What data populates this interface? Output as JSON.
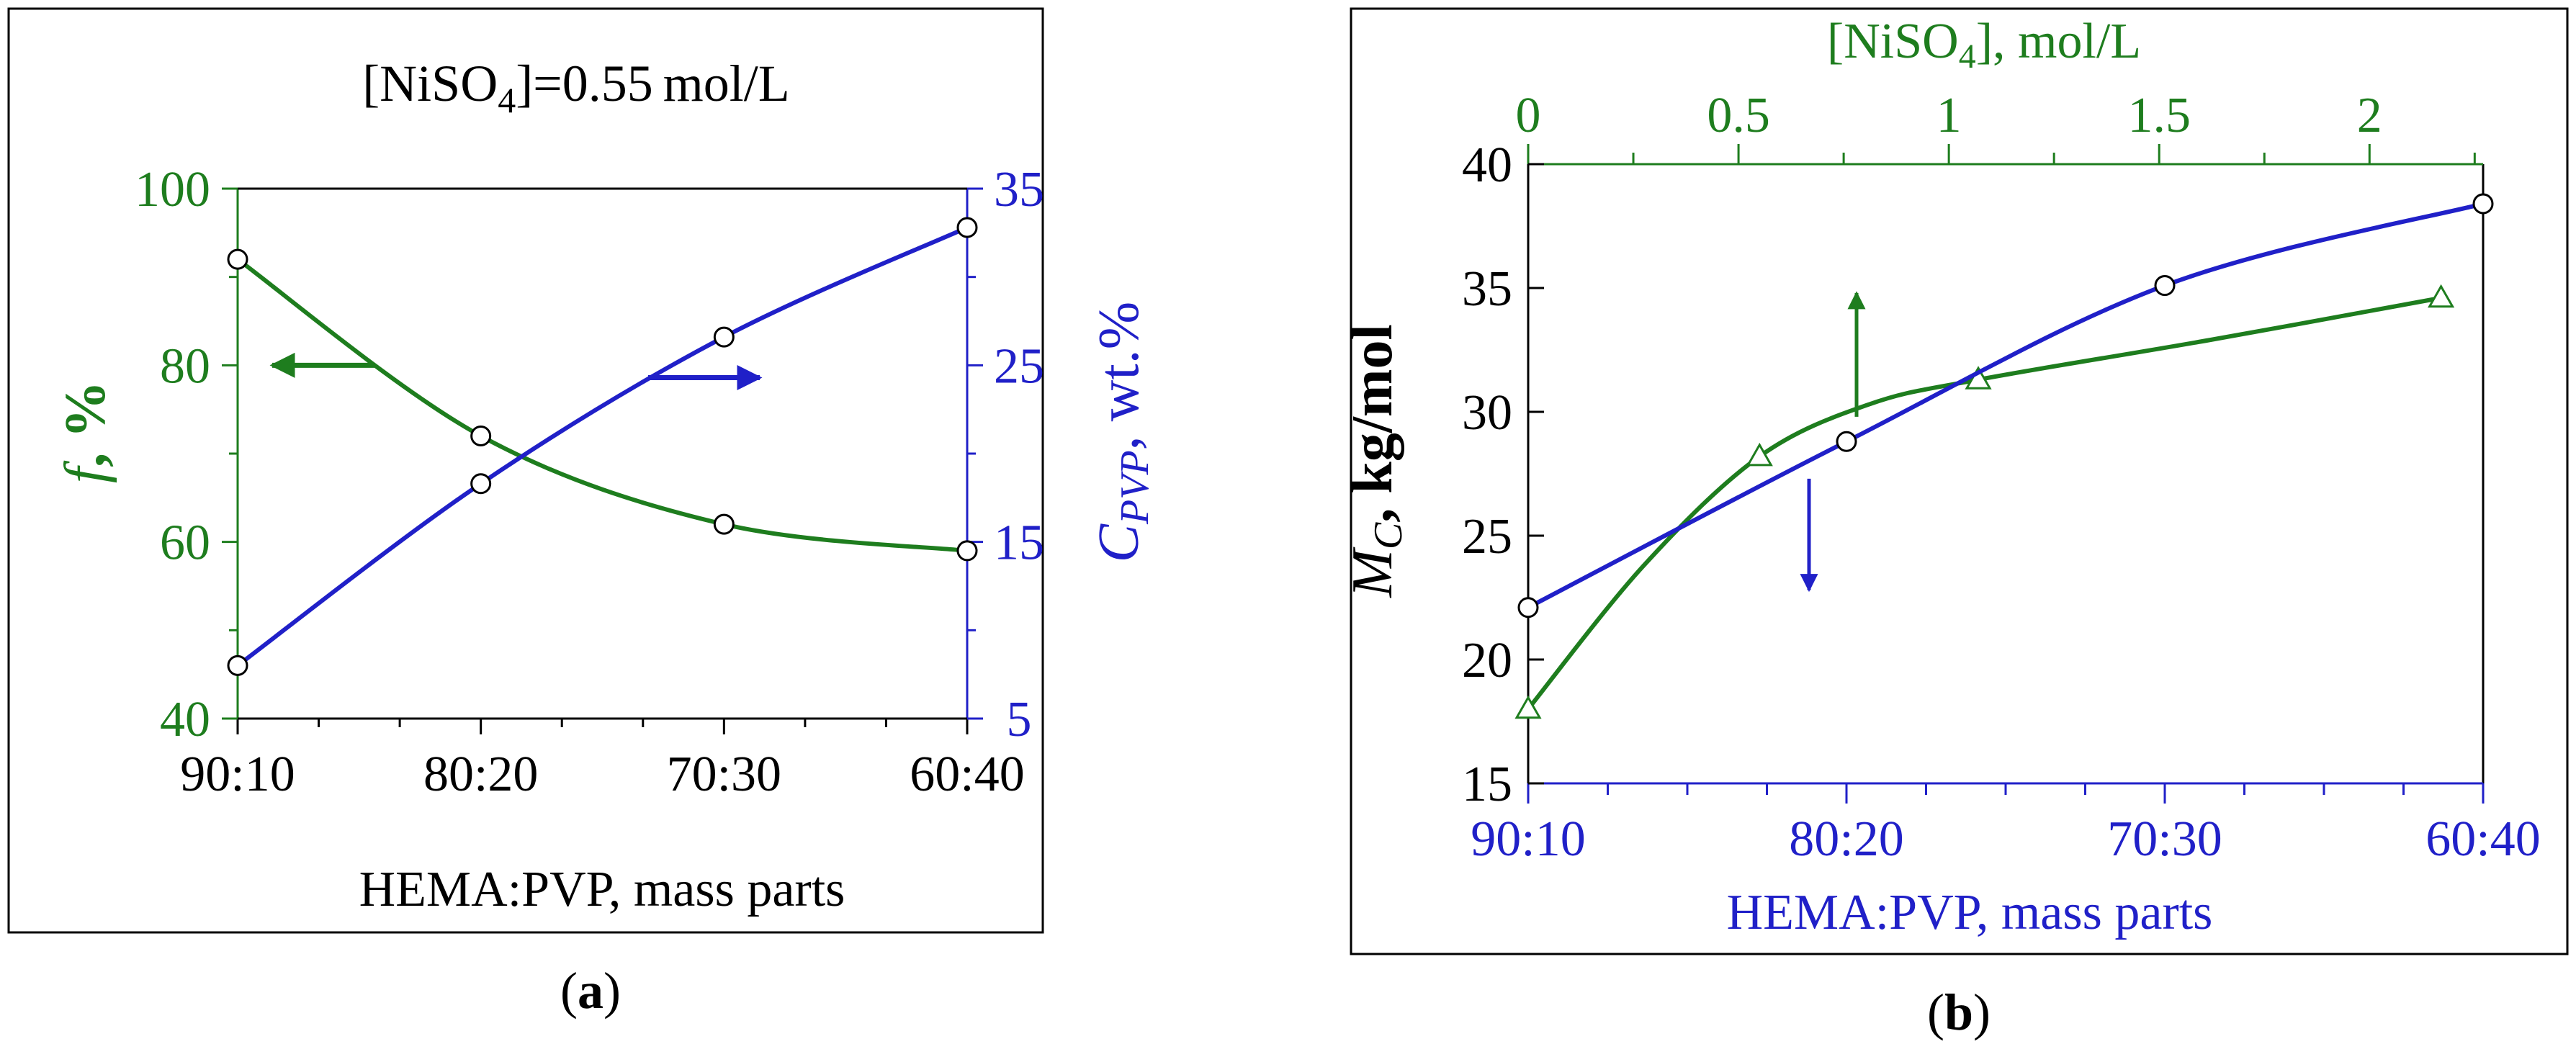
{
  "colors": {
    "green": "#1e7d1e",
    "blue": "#2020c8",
    "frame": "#000000"
  },
  "chart_data": [
    {
      "type": "line",
      "panel_label": "a",
      "title_parts": [
        "[NiSO",
        "4",
        "]=0.55",
        "mol/L"
      ],
      "categories": [
        "90:10",
        "80:20",
        "70:30",
        "60:40"
      ],
      "x": [
        10,
        20,
        30,
        40
      ],
      "xlabel": "HEMA:PVP, mass parts",
      "left_axis": {
        "ylim": [
          40,
          100
        ],
        "ticks": [
          "40",
          "60",
          "80",
          "100"
        ],
        "label_symbol": "f",
        "label_unit": ", %"
      },
      "right_axis": {
        "ylim": [
          5,
          35
        ],
        "ticks": [
          "5",
          "15",
          "25",
          "35"
        ],
        "label_symbol": "C",
        "label_subscript": "PVP",
        "label_unit": ",  wt.%"
      },
      "series": [
        {
          "name": "f, %",
          "axis": "left",
          "marker": "circle",
          "color": "green",
          "values": [
            92,
            72,
            62,
            59
          ],
          "arrow": "left"
        },
        {
          "name": "C_PVP, wt.%",
          "axis": "right",
          "marker": "circle",
          "color": "blue",
          "values": [
            8,
            18.3,
            26.6,
            32.8
          ],
          "arrow": "right"
        }
      ]
    },
    {
      "type": "line",
      "panel_label": "b",
      "bottom_axis": {
        "categories": [
          "90:10",
          "80:20",
          "70:30",
          "60:40"
        ],
        "x": [
          10,
          20,
          30,
          40
        ],
        "label": "HEMA:PVP, mass parts"
      },
      "top_axis": {
        "label_parts": [
          "[NiSO",
          "4",
          "],  mol/L"
        ],
        "ticks": [
          "0",
          "0.5",
          "1",
          "1.5",
          "2"
        ],
        "xlim": [
          0,
          2.27
        ]
      },
      "y_axis": {
        "ylim": [
          15,
          40
        ],
        "ticks": [
          "15",
          "20",
          "25",
          "30",
          "35",
          "40"
        ],
        "label_symbol": "M",
        "label_subscript": "C",
        "label_unit": ",  kg/mol"
      },
      "series": [
        {
          "name": "M_C vs [NiSO4]",
          "axis": "top",
          "marker": "triangle",
          "color": "green",
          "x": [
            0,
            0.55,
            1.07,
            2.17
          ],
          "values": [
            18,
            28.2,
            31.3,
            34.6
          ],
          "arrow": "up"
        },
        {
          "name": "M_C vs HEMA:PVP",
          "axis": "bottom",
          "marker": "circle",
          "color": "blue",
          "x": [
            10,
            20,
            30,
            40
          ],
          "values": [
            22.1,
            28.8,
            35.1,
            38.4
          ],
          "arrow": "down"
        }
      ]
    }
  ]
}
